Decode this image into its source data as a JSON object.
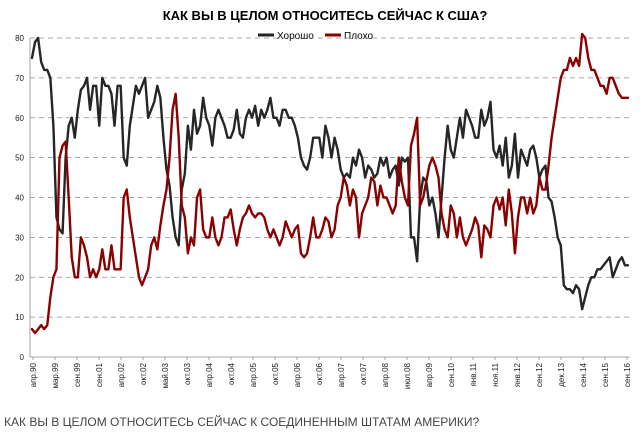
{
  "chart_data": {
    "type": "line",
    "title": "КАК ВЫ В ЦЕЛОМ ОТНОСИТЕСЬ СЕЙЧАС К США?",
    "ylim": [
      0,
      80
    ],
    "yticks": [
      0,
      10,
      20,
      30,
      40,
      50,
      60,
      70,
      80
    ],
    "grid": "horizontal-dashed",
    "legend_position": "top-center",
    "x_tick_labels": [
      "апр.90",
      "мар.99",
      "сен.99",
      "сен.01",
      "апр.02",
      "окт.02",
      "май.03",
      "окт.03",
      "апр.04",
      "окт.04",
      "апр.05",
      "окт.05",
      "апр.06",
      "окт.06",
      "апр.07",
      "окт.07",
      "апр.08",
      "июл.08",
      "апр.09",
      "сен.10",
      "янв.11",
      "ноя.11",
      "янв.12",
      "сен.12",
      "дек.13",
      "сен.14",
      "сен.15",
      "сен.16"
    ],
    "series": [
      {
        "name": "Хорошо",
        "color": "#262626",
        "values": [
          75,
          79,
          80,
          74,
          72,
          72,
          70,
          58,
          35,
          32,
          31,
          50,
          58,
          60,
          55,
          62,
          67,
          68,
          70,
          62,
          68,
          68,
          58,
          70,
          68,
          68,
          66,
          58,
          68,
          68,
          50,
          48,
          58,
          63,
          68,
          66,
          68,
          70,
          60,
          62,
          64,
          68,
          65,
          55,
          47,
          43,
          35,
          30,
          28,
          42,
          46,
          58,
          52,
          62,
          56,
          58,
          65,
          60,
          58,
          53,
          60,
          62,
          60,
          58,
          55,
          55,
          57,
          62,
          56,
          55,
          60,
          62,
          60,
          63,
          58,
          62,
          60,
          62,
          65,
          60,
          60,
          58,
          62,
          62,
          60,
          60,
          58,
          55,
          50,
          48,
          47,
          50,
          55,
          55,
          55,
          50,
          58,
          55,
          50,
          55,
          52,
          47,
          45,
          46,
          45,
          50,
          48,
          52,
          50,
          45,
          48,
          47,
          45,
          46,
          50,
          48,
          50,
          45,
          47,
          48,
          43,
          50,
          49,
          50,
          30,
          30,
          24,
          40,
          45,
          44,
          38,
          40,
          36,
          30,
          40,
          50,
          58,
          52,
          50,
          55,
          60,
          55,
          62,
          60,
          58,
          55,
          55,
          62,
          58,
          60,
          64,
          52,
          50,
          53,
          48,
          55,
          45,
          48,
          56,
          45,
          52,
          50,
          48,
          52,
          53,
          50,
          45,
          47,
          48,
          40,
          39,
          35,
          30,
          28,
          18,
          17,
          17,
          16,
          18,
          17,
          12,
          15,
          18,
          20,
          20,
          22,
          22,
          23,
          24,
          25,
          20,
          22,
          24,
          25,
          23,
          23
        ]
      },
      {
        "name": "Плохо",
        "color": "#8b0000",
        "values": [
          7,
          6,
          7,
          8,
          7,
          8,
          15,
          20,
          22,
          50,
          53,
          54,
          40,
          25,
          20,
          20,
          30,
          28,
          25,
          20,
          22,
          20,
          22,
          27,
          22,
          22,
          28,
          22,
          22,
          22,
          40,
          42,
          35,
          30,
          25,
          20,
          18,
          20,
          22,
          28,
          30,
          27,
          33,
          38,
          42,
          50,
          62,
          66,
          55,
          38,
          35,
          26,
          30,
          28,
          40,
          42,
          32,
          30,
          30,
          35,
          30,
          28,
          30,
          35,
          35,
          37,
          32,
          28,
          32,
          35,
          36,
          38,
          36,
          35,
          36,
          36,
          35,
          32,
          30,
          32,
          30,
          28,
          30,
          34,
          32,
          30,
          32,
          33,
          26,
          25,
          26,
          30,
          35,
          30,
          30,
          32,
          35,
          34,
          30,
          32,
          38,
          40,
          45,
          43,
          38,
          42,
          40,
          30,
          36,
          38,
          40,
          45,
          44,
          38,
          43,
          40,
          40,
          38,
          36,
          38,
          50,
          44,
          40,
          38,
          53,
          56,
          60,
          38,
          40,
          44,
          48,
          50,
          48,
          45,
          36,
          32,
          30,
          38,
          36,
          30,
          35,
          30,
          28,
          30,
          32,
          35,
          33,
          25,
          33,
          32,
          30,
          38,
          40,
          37,
          40,
          33,
          42,
          36,
          26,
          35,
          40,
          40,
          36,
          40,
          36,
          38,
          45,
          42,
          42,
          48,
          55,
          60,
          65,
          70,
          72,
          72,
          75,
          73,
          75,
          73,
          81,
          80,
          75,
          72,
          72,
          70,
          68,
          68,
          66,
          70,
          70,
          68,
          66,
          65,
          65,
          65
        ]
      }
    ],
    "caption": "КАК ВЫ В ЦЕЛОМ ОТНОСИТЕСЬ СЕЙЧАС К СОЕДИНЕННЫМ ШТАТАМ АМЕРИКИ?"
  }
}
